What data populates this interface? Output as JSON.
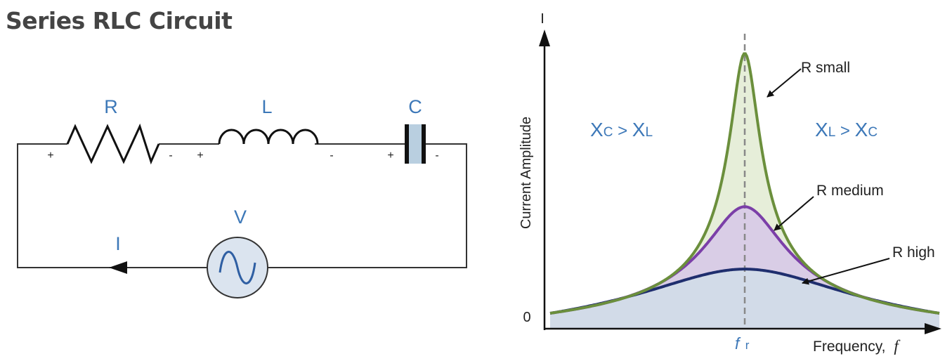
{
  "title": "Series RLC Circuit",
  "circuit": {
    "resistor_label": "R",
    "inductor_label": "L",
    "capacitor_label": "C",
    "source_label": "V",
    "current_label": "I",
    "plus": "+",
    "minus": "-"
  },
  "graph": {
    "y_axis_symbol": "I",
    "y_axis_label": "Current Amplitude",
    "origin_label": "0",
    "x_axis_label": "Frequency,",
    "x_axis_symbol": "f",
    "resonance_symbol": "f",
    "resonance_subscript": "r",
    "region_left": {
      "x": "X",
      "x_sub": "C",
      "rel": " > ",
      "y": "X",
      "y_sub": "L"
    },
    "region_right": {
      "x": "X",
      "x_sub": "L",
      "rel": " > ",
      "y": "X",
      "y_sub": "C"
    },
    "curves": [
      {
        "label": "R small",
        "relative_peak": 1.0,
        "color": "#6b8f3c",
        "fill": "#e6eed9"
      },
      {
        "label": "R medium",
        "relative_peak": 0.41,
        "color": "#7b3fa8",
        "fill": "#d9cde6"
      },
      {
        "label": "R high",
        "relative_peak": 0.17,
        "color": "#1f2e6e",
        "fill": "#d2dbe8"
      }
    ]
  },
  "colors": {
    "wire": "#333333",
    "label_blue": "#3d78b8",
    "capacitor_fill": "#b9cfe0",
    "source_fill": "#dbe4ef",
    "axis": "#111111",
    "resonance_line": "#888888"
  }
}
